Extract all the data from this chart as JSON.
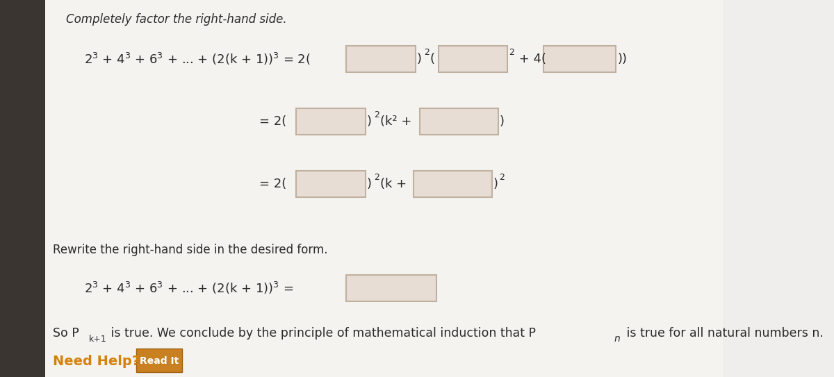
{
  "bg_color": "#f0eeec",
  "left_panel_color": "#3a3530",
  "title1": "Completely factor the right-hand side.",
  "title2": "Rewrite the right-hand side in the desired form.",
  "box_fill": "#e8ddd5",
  "box_edge": "#c0b0a0",
  "text_color": "#2a2a2a",
  "help_color": "#d4820a",
  "btn_color": "#c88020",
  "btn_text_color": "#ffffff",
  "bottom_line": "So P",
  "bottom_sub1": "k+1",
  "bottom_mid": " is true. We conclude by the principle of mathematical induction that P",
  "bottom_sub2": "n",
  "bottom_end": " is true for all natural numbers n.",
  "help_text": "Need Help?",
  "read_text": "Read It"
}
